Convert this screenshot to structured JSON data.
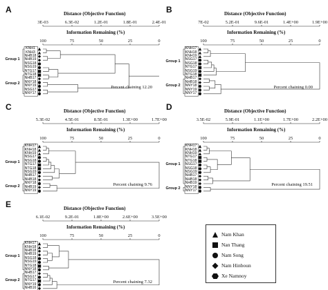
{
  "chart_data": [
    {
      "type": "dendrogram",
      "panel": "A",
      "distance_label": "Distance (Objective Function)",
      "distance_ticks": [
        "3E-03",
        "6.3E-02",
        "1.2E-01",
        "1.8E-01",
        "2.4E-01"
      ],
      "info_label": "Information Remaining (%)",
      "info_ticks": [
        "100",
        "75",
        "50",
        "25",
        "0"
      ],
      "leaves": [
        {
          "label": "KNH1",
          "region": "Nam Khan"
        },
        {
          "label": "KNH3",
          "region": "Nam Khan"
        },
        {
          "label": "NHB18",
          "region": "Nam Hinboun"
        },
        {
          "label": "NHB19",
          "region": "Nam Hinboun"
        },
        {
          "label": "NSG18",
          "region": "Nam Song"
        },
        {
          "label": "NSG19",
          "region": "Nam Song"
        },
        {
          "label": "NTG17",
          "region": "Nan Thang"
        },
        {
          "label": "NTG18",
          "region": "Nan Thang"
        },
        {
          "label": "NHB17",
          "region": "Nam Hinboun"
        },
        {
          "label": "NNY18",
          "region": "Xe Namnoy"
        },
        {
          "label": "NNY19",
          "region": "Xe Namnoy"
        },
        {
          "label": "NSG17",
          "region": "Nam Song"
        },
        {
          "label": "NNY17",
          "region": "Xe Namnoy"
        }
      ],
      "groups": [
        {
          "name": "Group 1",
          "first": 0,
          "last": 6
        },
        {
          "name": "Group 2",
          "first": 7,
          "last": 12
        }
      ],
      "merges": [
        [
          0,
          1,
          3
        ],
        [
          2,
          3,
          4
        ],
        [
          5,
          6,
          5
        ],
        [
          7,
          8,
          5
        ],
        [
          9,
          10,
          4
        ],
        [
          11,
          12,
          4
        ],
        [
          13,
          14,
          15
        ],
        [
          15,
          16,
          13
        ],
        [
          18,
          17,
          30
        ],
        [
          19,
          20,
          62
        ],
        [
          22,
          21,
          74
        ],
        [
          23,
          24,
          100
        ]
      ],
      "chaining_text": "Percent chaining 12.20"
    },
    {
      "type": "dendrogram",
      "panel": "B",
      "distance_label": "Distance (Objective Function)",
      "distance_ticks": [
        "7E-02",
        "5.2E-01",
        "9.6E-01",
        "1.4E+00",
        "1.9E+00"
      ],
      "info_label": "Information Remaining (%)",
      "info_ticks": [
        "100",
        "75",
        "50",
        "25",
        "0"
      ],
      "leaves": [
        {
          "label": "KNH17",
          "region": "Nam Khan"
        },
        {
          "label": "KNH18",
          "region": "Nam Khan"
        },
        {
          "label": "KNH19",
          "region": "Nam Khan"
        },
        {
          "label": "NSG17",
          "region": "Nam Song"
        },
        {
          "label": "NSG18",
          "region": "Nam Song"
        },
        {
          "label": "NTG17",
          "region": "Nan Thang"
        },
        {
          "label": "NSG19",
          "region": "Nam Song"
        },
        {
          "label": "NTG18",
          "region": "Nan Thang"
        },
        {
          "label": "NHB17",
          "region": "Nam Hinboun"
        },
        {
          "label": "NHB18",
          "region": "Nam Hinboun"
        },
        {
          "label": "NNY18",
          "region": "Xe Namnoy"
        },
        {
          "label": "NNY19",
          "region": "Xe Namnoy"
        },
        {
          "label": "NNY17",
          "region": "Xe Namnoy"
        }
      ],
      "groups": [
        {
          "name": "Group 1",
          "first": 0,
          "last": 7
        },
        {
          "name": "Group 2",
          "first": 8,
          "last": 12
        }
      ],
      "merges": [
        [
          0,
          1,
          4
        ],
        [
          13,
          2,
          6
        ],
        [
          3,
          4,
          4
        ],
        [
          15,
          5,
          7
        ],
        [
          16,
          6,
          9
        ],
        [
          17,
          7,
          11
        ],
        [
          14,
          18,
          36
        ],
        [
          8,
          9,
          5
        ],
        [
          10,
          11,
          5
        ],
        [
          20,
          21,
          10
        ],
        [
          22,
          12,
          15
        ],
        [
          19,
          23,
          100
        ]
      ],
      "chaining_text": "Percent chaining 0.00"
    },
    {
      "type": "dendrogram",
      "panel": "C",
      "distance_label": "Distance (Objective Function)",
      "distance_ticks": [
        "5.3E-02",
        "4.5E-01",
        "8.5E-01",
        "1.3E+00",
        "1.7E+00"
      ],
      "info_label": "Information Remaining (%)",
      "info_ticks": [
        "100",
        "75",
        "50",
        "25",
        "0"
      ],
      "leaves": [
        {
          "label": "KNH17",
          "region": "Nam Khan"
        },
        {
          "label": "KNH18",
          "region": "Nam Khan"
        },
        {
          "label": "KNH19",
          "region": "Nam Khan"
        },
        {
          "label": "NSG17",
          "region": "Nam Song"
        },
        {
          "label": "NSG18",
          "region": "Nam Song"
        },
        {
          "label": "NTG17",
          "region": "Nan Thang"
        },
        {
          "label": "NTG18",
          "region": "Nan Thang"
        },
        {
          "label": "NSG19",
          "region": "Nam Song"
        },
        {
          "label": "NHB17",
          "region": "Nam Hinboun"
        },
        {
          "label": "NHB18",
          "region": "Nam Hinboun"
        },
        {
          "label": "NNY18",
          "region": "Xe Namnoy"
        },
        {
          "label": "NHB19",
          "region": "Nam Hinboun"
        },
        {
          "label": "NNY19",
          "region": "Xe Namnoy"
        }
      ],
      "groups": [
        {
          "name": "Group 1",
          "first": 0,
          "last": 9
        },
        {
          "name": "Group 2",
          "first": 10,
          "last": 12
        }
      ],
      "merges": [
        [
          0,
          1,
          3
        ],
        [
          13,
          2,
          5
        ],
        [
          3,
          4,
          3
        ],
        [
          15,
          5,
          5
        ],
        [
          16,
          6,
          7
        ],
        [
          17,
          7,
          10
        ],
        [
          8,
          9,
          8
        ],
        [
          18,
          19,
          14
        ],
        [
          14,
          20,
          28
        ],
        [
          10,
          11,
          6
        ],
        [
          22,
          12,
          12
        ],
        [
          21,
          23,
          100
        ]
      ],
      "chaining_text": "Percent chaining 9.76"
    },
    {
      "type": "dendrogram",
      "panel": "D",
      "distance_label": "Distance (Objective Function)",
      "distance_ticks": [
        "3.5E-02",
        "5.9E-01",
        "1.1E+00",
        "1.7E+00",
        "2.2E+00"
      ],
      "info_label": "Information Remaining (%)",
      "info_ticks": [
        "100",
        "75",
        "50",
        "25",
        "0"
      ],
      "leaves": [
        {
          "label": "KNH17",
          "region": "Nam Khan"
        },
        {
          "label": "KNH18",
          "region": "Nam Khan"
        },
        {
          "label": "KNH19",
          "region": "Nam Khan"
        },
        {
          "label": "NTG17",
          "region": "Nan Thang"
        },
        {
          "label": "NTG18",
          "region": "Nan Thang"
        },
        {
          "label": "NSG17",
          "region": "Nam Song"
        },
        {
          "label": "NSG18",
          "region": "Nam Song"
        },
        {
          "label": "NSG19",
          "region": "Nam Song"
        },
        {
          "label": "NHB17",
          "region": "Nam Hinboun"
        },
        {
          "label": "NHB18",
          "region": "Nam Hinboun"
        },
        {
          "label": "NHB19",
          "region": "Nam Hinboun"
        },
        {
          "label": "NNY18",
          "region": "Xe Namnoy"
        },
        {
          "label": "NNY17",
          "region": "Xe Namnoy"
        }
      ],
      "groups": [
        {
          "name": "Group 1",
          "first": 0,
          "last": 10
        },
        {
          "name": "Group 2",
          "first": 11,
          "last": 12
        }
      ],
      "merges": [
        [
          0,
          1,
          3
        ],
        [
          13,
          2,
          5
        ],
        [
          3,
          4,
          3
        ],
        [
          5,
          6,
          3
        ],
        [
          16,
          7,
          6
        ],
        [
          15,
          17,
          12
        ],
        [
          14,
          18,
          24
        ],
        [
          8,
          9,
          4
        ],
        [
          20,
          10,
          8
        ],
        [
          19,
          21,
          40
        ],
        [
          11,
          12,
          6
        ],
        [
          22,
          23,
          100
        ]
      ],
      "chaining_text": "Percent chaining 19.51"
    },
    {
      "type": "dendrogram",
      "panel": "E",
      "distance_label": "Distance (Objective Function)",
      "distance_ticks": [
        "6.1E-02",
        "9.2E-01",
        "1.8E+00",
        "2.6E+00",
        "3.5E+00"
      ],
      "info_label": "Information Remaining (%)",
      "info_ticks": [
        "100",
        "75",
        "50",
        "25",
        "0"
      ],
      "leaves": [
        {
          "label": "KNH17",
          "region": "Nam Khan"
        },
        {
          "label": "KNH18",
          "region": "Nam Khan"
        },
        {
          "label": "NHB18",
          "region": "Nam Hinboun"
        },
        {
          "label": "NHB19",
          "region": "Nam Hinboun"
        },
        {
          "label": "NSG18",
          "region": "Nam Song"
        },
        {
          "label": "NSG19",
          "region": "Nam Song"
        },
        {
          "label": "NTG18",
          "region": "Nan Thang"
        },
        {
          "label": "NNY18",
          "region": "Xe Namnoy"
        },
        {
          "label": "NHB17",
          "region": "Nam Hinboun"
        },
        {
          "label": "NSG17",
          "region": "Nam Song"
        },
        {
          "label": "NTG17",
          "region": "Nan Thang"
        },
        {
          "label": "NNY19",
          "region": "Xe Namnoy"
        },
        {
          "label": "NHB16",
          "region": "Nam Hinboun"
        }
      ],
      "groups": [
        {
          "name": "Group 1",
          "first": 0,
          "last": 7
        },
        {
          "name": "Group 2",
          "first": 8,
          "last": 12
        }
      ],
      "merges": [
        [
          0,
          1,
          4
        ],
        [
          2,
          3,
          4
        ],
        [
          4,
          5,
          4
        ],
        [
          14,
          15,
          8
        ],
        [
          6,
          7,
          5
        ],
        [
          13,
          16,
          14
        ],
        [
          18,
          17,
          22
        ],
        [
          8,
          9,
          4
        ],
        [
          20,
          10,
          6
        ],
        [
          21,
          11,
          8
        ],
        [
          22,
          12,
          12
        ],
        [
          19,
          23,
          100
        ]
      ],
      "chaining_text": "Percent chaining 7.32"
    }
  ],
  "legend": {
    "items": [
      {
        "label": "Nam Khan",
        "shape": "triangle"
      },
      {
        "label": "Nan Thang",
        "shape": "square"
      },
      {
        "label": "Nam Song",
        "shape": "circle"
      },
      {
        "label": "Nam Hinboun",
        "shape": "diamond"
      },
      {
        "label": "Xe Namnoy",
        "shape": "hexagon"
      }
    ]
  }
}
